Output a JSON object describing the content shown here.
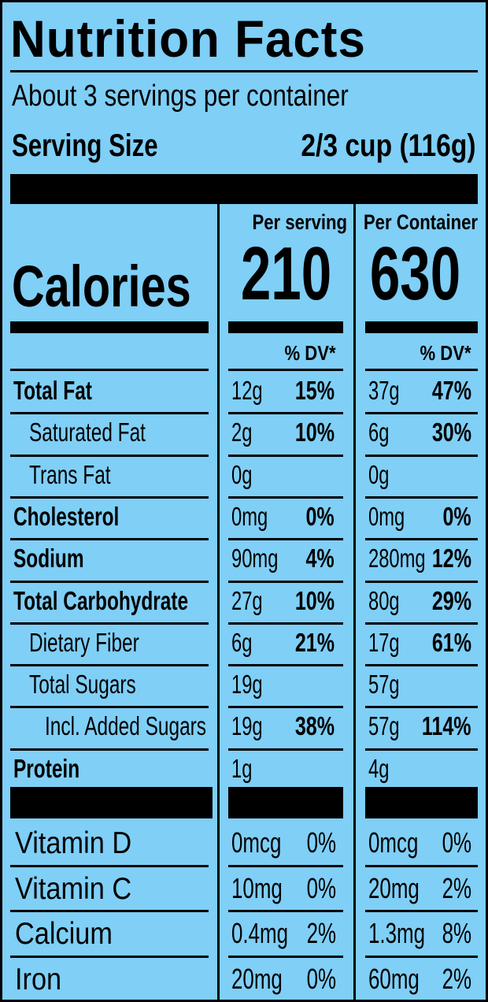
{
  "title": "Nutrition Facts",
  "servings_per_container": "About 3 servings per container",
  "serving_size": {
    "label": "Serving Size",
    "value": "2/3 cup (116g)"
  },
  "columns": {
    "per_serving": "Per serving",
    "per_container": "Per Container"
  },
  "calories": {
    "label": "Calories",
    "per_serving": "210",
    "per_container": "630"
  },
  "dv_header": "% DV*",
  "nutrients": [
    {
      "name": "Total Fat",
      "serving_amount": "12g",
      "serving_dv": "15%",
      "container_amount": "37g",
      "container_dv": "47%"
    },
    {
      "name": "Saturated Fat",
      "serving_amount": "2g",
      "serving_dv": "10%",
      "container_amount": "6g",
      "container_dv": "30%"
    },
    {
      "name": "Trans Fat",
      "serving_amount": "0g",
      "serving_dv": "",
      "container_amount": "0g",
      "container_dv": ""
    },
    {
      "name": "Cholesterol",
      "serving_amount": "0mg",
      "serving_dv": "0%",
      "container_amount": "0mg",
      "container_dv": "0%"
    },
    {
      "name": "Sodium",
      "serving_amount": "90mg",
      "serving_dv": "4%",
      "container_amount": "280mg",
      "container_dv": "12%"
    },
    {
      "name": "Total Carbohydrate",
      "serving_amount": "27g",
      "serving_dv": "10%",
      "container_amount": "80g",
      "container_dv": "29%"
    },
    {
      "name": "Dietary Fiber",
      "serving_amount": "6g",
      "serving_dv": "21%",
      "container_amount": "17g",
      "container_dv": "61%"
    },
    {
      "name": "Total Sugars",
      "serving_amount": "19g",
      "serving_dv": "",
      "container_amount": "57g",
      "container_dv": ""
    },
    {
      "name": "Incl. Added Sugars",
      "serving_amount": "19g",
      "serving_dv": "38%",
      "container_amount": "57g",
      "container_dv": "114%"
    },
    {
      "name": "Protein",
      "serving_amount": "1g",
      "serving_dv": "",
      "container_amount": "4g",
      "container_dv": ""
    }
  ],
  "vitamins": [
    {
      "name": "Vitamin D",
      "serving_amount": "0mcg",
      "serving_dv": "0%",
      "container_amount": "0mcg",
      "container_dv": "0%"
    },
    {
      "name": "Vitamin C",
      "serving_amount": "10mg",
      "serving_dv": "0%",
      "container_amount": "20mg",
      "container_dv": "2%"
    },
    {
      "name": "Calcium",
      "serving_amount": "0.4mg",
      "serving_dv": "2%",
      "container_amount": "1.3mg",
      "container_dv": "8%"
    },
    {
      "name": "Iron",
      "serving_amount": "20mg",
      "serving_dv": "0%",
      "container_amount": "60mg",
      "container_dv": "2%"
    }
  ],
  "colors": {
    "background": "#7fcff7",
    "ink": "#000000"
  }
}
